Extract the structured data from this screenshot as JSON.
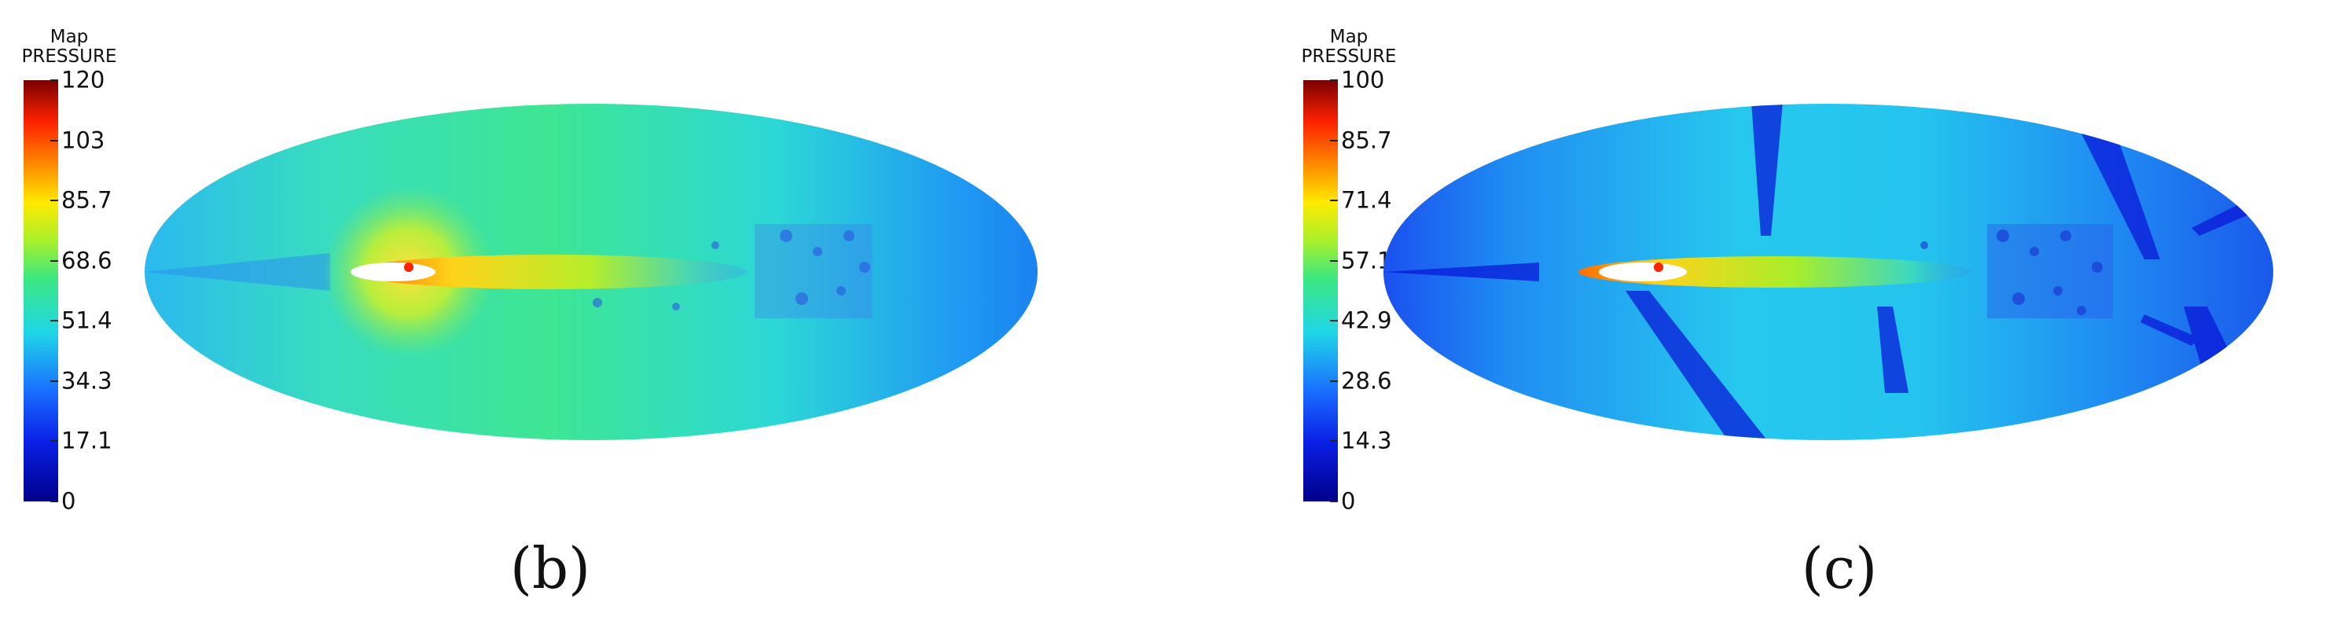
{
  "panels": [
    {
      "id": "b",
      "colorbar": {
        "title_line1": "Map",
        "title_line2": "PRESSURE",
        "ticks": [
          "120",
          "103",
          "85.7",
          "68.6",
          "51.4",
          "34.3",
          "17.1",
          "0"
        ],
        "min": 0,
        "max": 120
      },
      "label": "(b)"
    },
    {
      "id": "c",
      "colorbar": {
        "title_line1": "Map",
        "title_line2": "PRESSURE",
        "ticks": [
          "100",
          "85.7",
          "71.4",
          "57.1",
          "42.9",
          "28.6",
          "14.3",
          "0"
        ],
        "min": 0,
        "max": 100
      },
      "label": "(c)"
    }
  ]
}
